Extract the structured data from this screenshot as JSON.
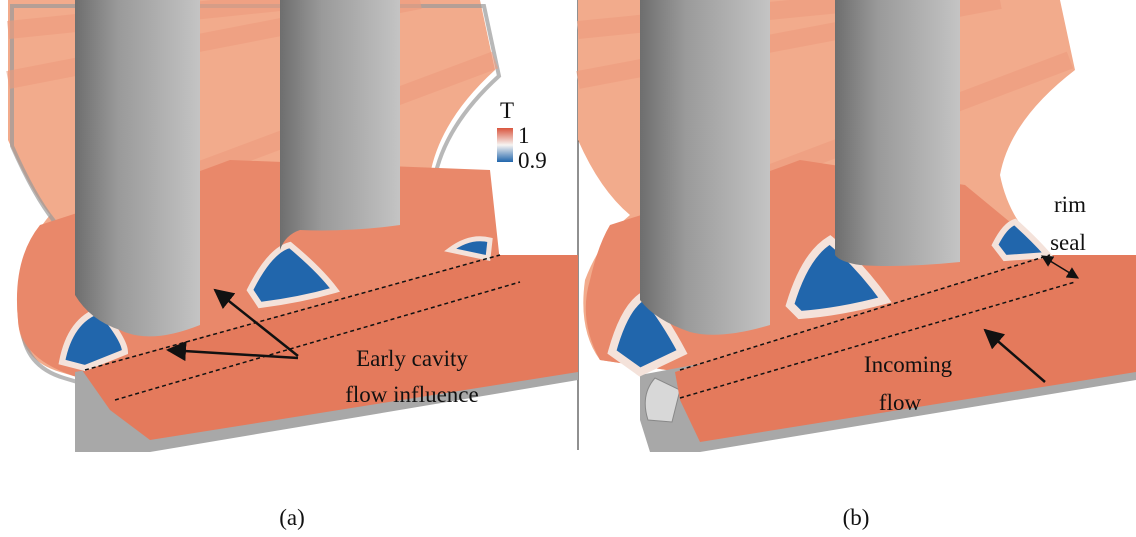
{
  "panels": [
    {
      "label": "(a)",
      "colorbar": {
        "title": "T",
        "max_label": 1,
        "min_label": 0.9
      },
      "annotation": {
        "lines": [
          "Early cavity",
          "flow influence"
        ]
      }
    },
    {
      "label": "(b)",
      "annotations": [
        {
          "lines": [
            "rim",
            "seal"
          ]
        },
        {
          "lines": [
            "Incoming",
            "flow"
          ]
        }
      ]
    }
  ]
}
